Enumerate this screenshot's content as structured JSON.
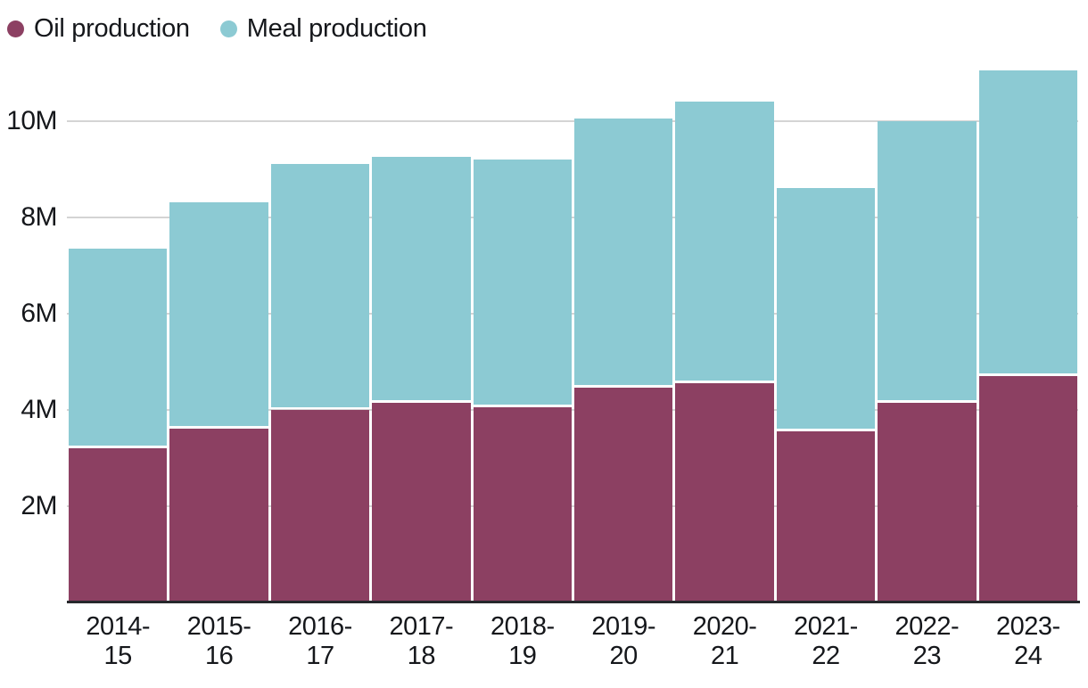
{
  "legend": {
    "items": [
      {
        "label": "Oil production",
        "color": "#8c4062",
        "icon": "legend-dot"
      },
      {
        "label": "Meal production",
        "color": "#8ccad3",
        "icon": "legend-dot"
      }
    ]
  },
  "chart_data": {
    "type": "bar",
    "stacked": true,
    "title": "",
    "xlabel": "",
    "ylabel": "",
    "unit": "M",
    "categories": [
      "2014-15",
      "2015-16",
      "2016-17",
      "2017-18",
      "2018-19",
      "2019-20",
      "2020-21",
      "2021-22",
      "2022-23",
      "2023-24"
    ],
    "x_tick_lines": [
      [
        "2014-",
        "15"
      ],
      [
        "2015-",
        "16"
      ],
      [
        "2016-",
        "17"
      ],
      [
        "2017-",
        "18"
      ],
      [
        "2018-",
        "19"
      ],
      [
        "2019-",
        "20"
      ],
      [
        "2020-",
        "21"
      ],
      [
        "2021-",
        "22"
      ],
      [
        "2022-",
        "23"
      ],
      [
        "2023-",
        "24"
      ]
    ],
    "series": [
      {
        "name": "Oil production",
        "color": "#8c4062",
        "values": [
          3.2,
          3.6,
          4.0,
          4.15,
          4.05,
          4.45,
          4.55,
          3.55,
          4.15,
          4.7
        ]
      },
      {
        "name": "Meal production",
        "color": "#8ccad3",
        "values": [
          4.15,
          4.7,
          5.1,
          5.1,
          5.15,
          5.6,
          5.85,
          5.05,
          5.85,
          6.35
        ]
      }
    ],
    "totals": [
      7.35,
      8.3,
      9.1,
      9.25,
      9.2,
      10.05,
      10.4,
      8.6,
      10.0,
      11.05
    ],
    "yticks": [
      2,
      4,
      6,
      8,
      10
    ],
    "ytick_labels": [
      "2M",
      "4M",
      "6M",
      "8M",
      "10M"
    ],
    "ylim": [
      0,
      11.3
    ],
    "grid": true,
    "gridline_color": "#d4d4d4",
    "axis_line_color": "#27282c",
    "legend_position": "top-left",
    "segment_gap_color": "#ffffff"
  }
}
